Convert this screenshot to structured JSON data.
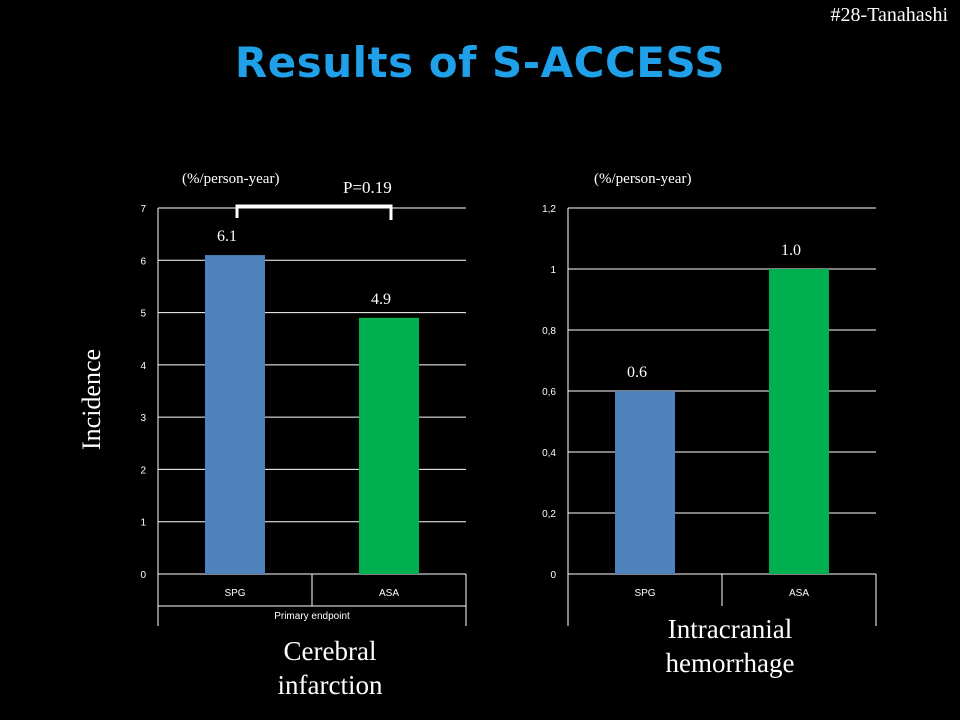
{
  "slide": {
    "tag": "#28-Tanahashi",
    "title": "Results of S-ACCESS",
    "y_axis_title": "Incidence"
  },
  "chart_data": [
    {
      "type": "bar",
      "unit": "(%/person-year)",
      "categories": [
        "SPG",
        "ASA"
      ],
      "values": [
        6.1,
        4.9
      ],
      "data_labels": [
        "6.1",
        "4.9"
      ],
      "colors": [
        "#4f81bd",
        "#00b050"
      ],
      "ylim": [
        0,
        7
      ],
      "ticks": [
        "0",
        "1",
        "2",
        "3",
        "4",
        "5",
        "6",
        "7"
      ],
      "group_label": "Primary endpoint",
      "annotation": "P=0.19",
      "caption_lines": [
        "Cerebral",
        "infarction"
      ],
      "grid": true
    },
    {
      "type": "bar",
      "unit": "(%/person-year)",
      "categories": [
        "SPG",
        "ASA"
      ],
      "values": [
        0.6,
        1.0
      ],
      "data_labels": [
        "0.6",
        "1.0"
      ],
      "colors": [
        "#4f81bd",
        "#00b050"
      ],
      "ylim": [
        0,
        1.2
      ],
      "ticks": [
        "0",
        "0,2",
        "0,4",
        "0,6",
        "0,8",
        "1",
        "1,2"
      ],
      "caption_lines": [
        "Intracranial",
        "hemorrhage"
      ],
      "grid": true
    }
  ]
}
